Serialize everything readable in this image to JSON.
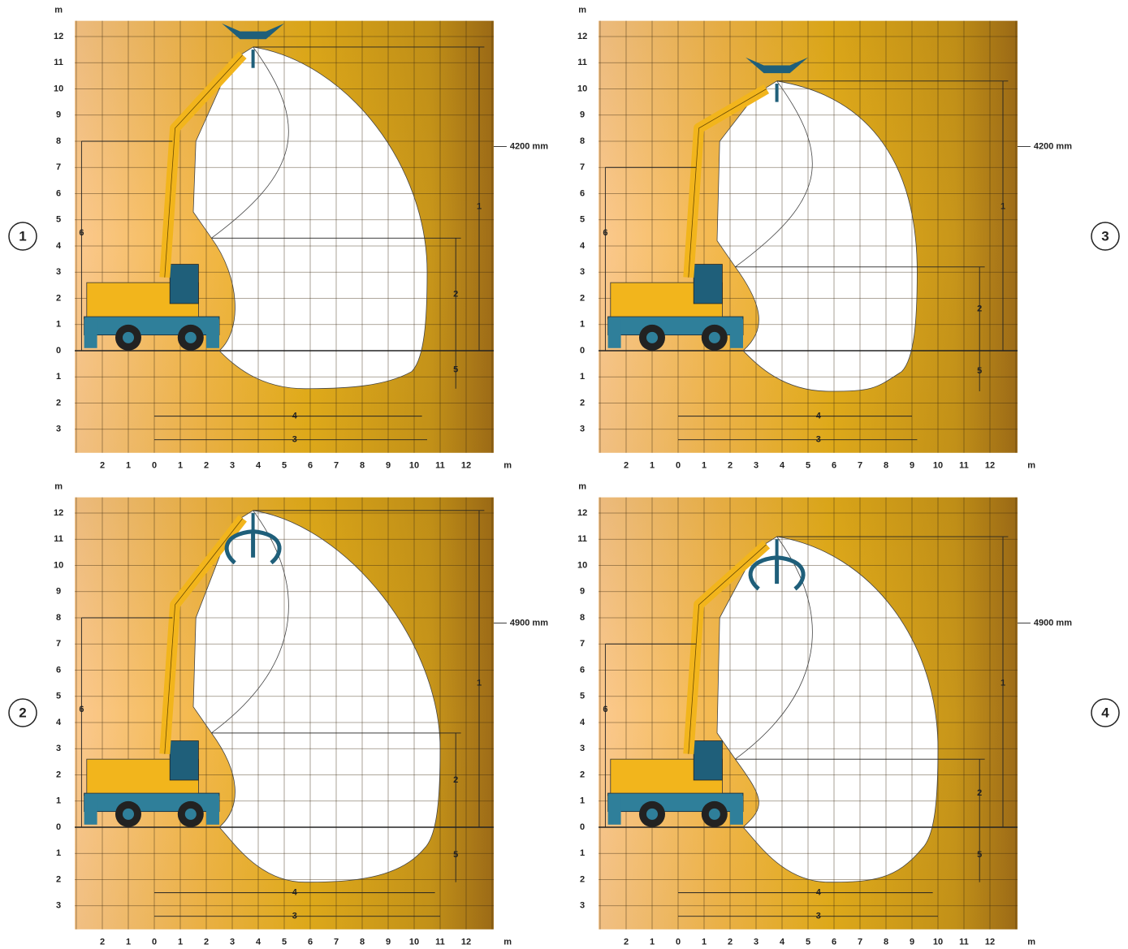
{
  "axes": {
    "y_unit": "m",
    "y_labels": [
      "12",
      "11",
      "10",
      "9",
      "8",
      "7",
      "6",
      "5",
      "4",
      "3",
      "2",
      "1",
      "0",
      "1",
      "2",
      "3"
    ],
    "x_labels": [
      "2",
      "1",
      "0",
      "1",
      "2",
      "3",
      "4",
      "5",
      "6",
      "7",
      "8",
      "9",
      "10",
      "11",
      "12"
    ],
    "x_unit": "m"
  },
  "dimension_markers": [
    "1",
    "2",
    "3",
    "4",
    "5",
    "6"
  ],
  "panels": [
    {
      "number": "1",
      "boom_offset": "4200 mm"
    },
    {
      "number": "2",
      "boom_offset": "4900 mm"
    },
    {
      "number": "3",
      "boom_offset": "4200 mm"
    },
    {
      "number": "4",
      "boom_offset": "4900 mm"
    }
  ]
}
